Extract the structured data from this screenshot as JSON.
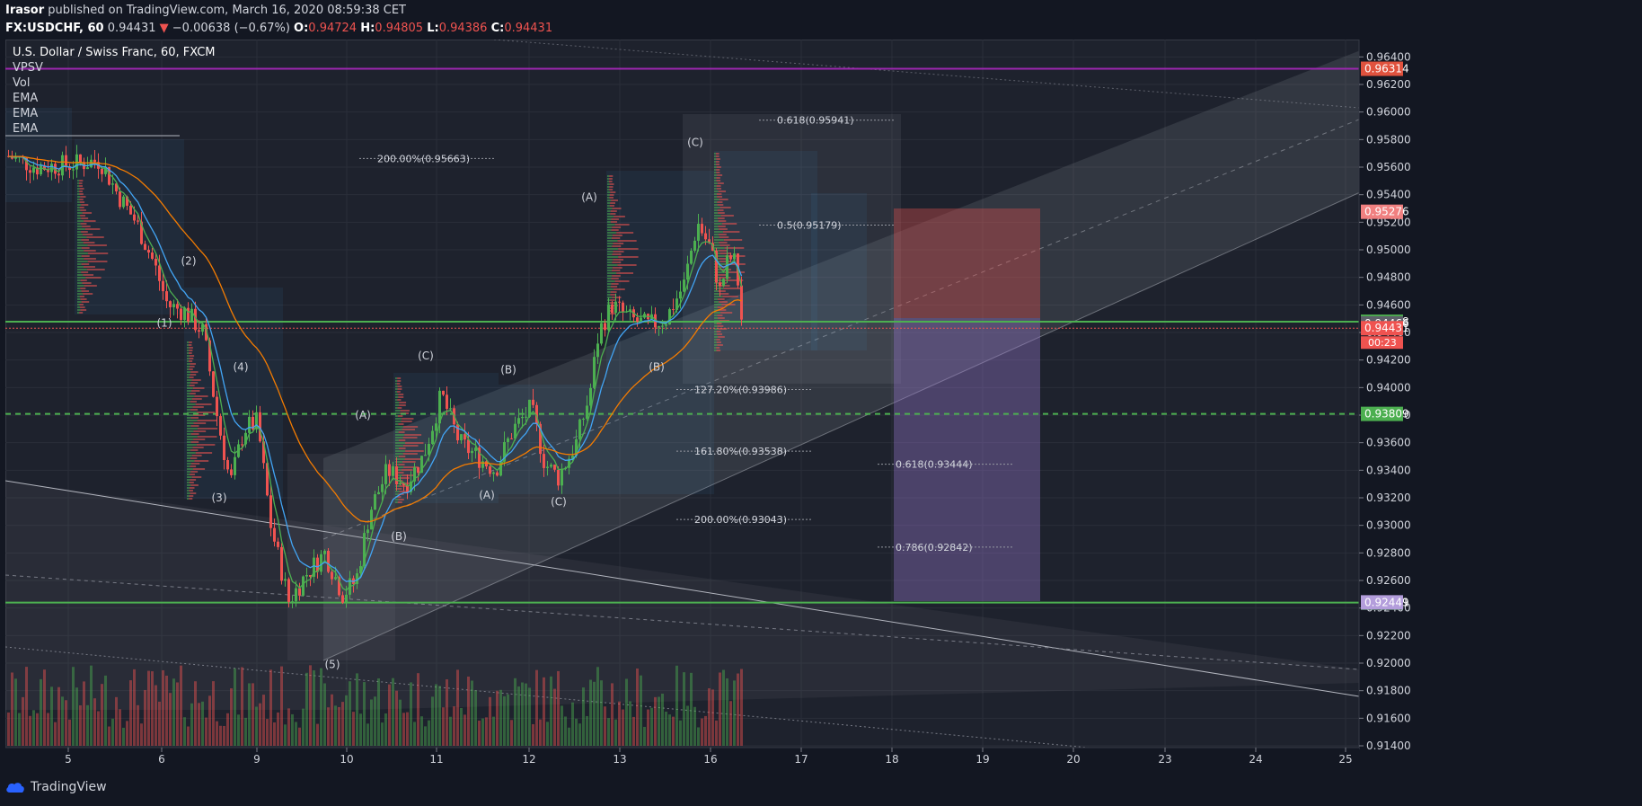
{
  "header": {
    "author": "Irasor",
    "published": "published on TradingView.com, March 16, 2020 08:59:38 CET",
    "symbol_line": "FX:USDCHF, 60",
    "last": "0.94431",
    "arrow": "▼",
    "change": "−0.00638 (−0.67%)",
    "o_label": "O:",
    "o_val": "0.94724",
    "h_label": "H:",
    "h_val": "0.94805",
    "l_label": "L:",
    "l_val": "0.94386",
    "c_label": "C:",
    "c_val": "0.94431"
  },
  "legend": {
    "title": "U.S. Dollar / Swiss Franc, 60, FXCM",
    "indicators": [
      "VPSV",
      "Vol",
      "EMA",
      "EMA",
      "EMA"
    ]
  },
  "colors": {
    "background": "#1e222d",
    "bull": "#4caf50",
    "bear": "#ef5350",
    "green_line": "#4caf50",
    "purple_line": "#9c27b0",
    "ema_fast": "#4caf50",
    "ema_mid": "#42a5f5",
    "ema_slow": "#f57c00"
  },
  "chart_data": {
    "type": "candlestick",
    "ylim": [
      0.914,
      0.965
    ],
    "y_ticks": [
      "0.96400",
      "0.96200",
      "0.96000",
      "0.95800",
      "0.95600",
      "0.95400",
      "0.95200",
      "0.95000",
      "0.94800",
      "0.94600",
      "0.94400",
      "0.94200",
      "0.94000",
      "0.93800",
      "0.93600",
      "0.93400",
      "0.93200",
      "0.93000",
      "0.92800",
      "0.92600",
      "0.92400",
      "0.92200",
      "0.92000",
      "0.91800",
      "0.91600",
      "0.91400"
    ],
    "x_ticks": [
      "5",
      "6",
      "9",
      "10",
      "11",
      "12",
      "13",
      "16",
      "17",
      "18",
      "19",
      "20",
      "23",
      "24",
      "25"
    ],
    "price_badges": [
      {
        "price": 0.96314,
        "label": "0.96314",
        "color": "#e0523e"
      },
      {
        "price": 0.95276,
        "label": "0.95276",
        "color": "#f08080"
      },
      {
        "price": 0.94478,
        "label": "0.94478",
        "color": "#4caf50"
      },
      {
        "price": 0.94466,
        "label": "0.94466",
        "color": "#5d606b"
      },
      {
        "price": 0.94431,
        "label": "0.94431",
        "color": "#ef5350"
      },
      {
        "price": 0.93809,
        "label": "0.93809",
        "color": "#4caf50"
      },
      {
        "price": 0.92439,
        "label": "0.92439",
        "color": "#4caf50"
      },
      {
        "price": 0.92441,
        "label": "0.92441",
        "color": "#b39ddb"
      }
    ],
    "countdown": "00:23",
    "horizontal_lines": [
      {
        "price": 0.96314,
        "color": "#9c27b0"
      },
      {
        "price": 0.94478,
        "color": "#4caf50"
      },
      {
        "price": 0.93809,
        "color": "#4caf50",
        "dashed": true
      },
      {
        "price": 0.92439,
        "color": "#4caf50"
      }
    ],
    "fib_labels": [
      {
        "text": "0.618(0.95941)",
        "x": 865,
        "price": 0.95941
      },
      {
        "text": "200.00%(0.95663)",
        "x": 420,
        "price": 0.95663
      },
      {
        "text": "0.5(0.95179)",
        "x": 865,
        "price": 0.95179
      },
      {
        "text": "127.20%(0.93986)",
        "x": 773,
        "price": 0.93986
      },
      {
        "text": "161.80%(0.93538)",
        "x": 773,
        "price": 0.93538
      },
      {
        "text": "0.618(0.93444)",
        "x": 997,
        "price": 0.93444
      },
      {
        "text": "200.00%(0.93043)",
        "x": 773,
        "price": 0.93043
      },
      {
        "text": "0.786(0.92842)",
        "x": 997,
        "price": 0.92842
      }
    ],
    "wave_labels": [
      {
        "text": "(1)",
        "price": 0.9447
      },
      {
        "text": "(2)",
        "price": 0.9492
      },
      {
        "text": "(3)",
        "price": 0.932
      },
      {
        "text": "(4)",
        "price": 0.9415
      },
      {
        "text": "(5)",
        "price": 0.9199
      },
      {
        "text": "(A)",
        "price": 0.938
      },
      {
        "text": "(B)",
        "price": 0.9292
      },
      {
        "text": "(C)",
        "price": 0.9423
      },
      {
        "text": "(A)",
        "price": 0.9322
      },
      {
        "text": "(B)",
        "price": 0.9413
      },
      {
        "text": "(C)",
        "price": 0.9317
      },
      {
        "text": "(A)",
        "price": 0.9538
      },
      {
        "text": "(B)",
        "price": 0.9415
      },
      {
        "text": "(C)",
        "price": 0.9578
      }
    ],
    "series": [
      {
        "name": "EMA"
      },
      {
        "name": "EMA"
      },
      {
        "name": "EMA"
      }
    ]
  },
  "footer": {
    "brand": "TradingView"
  }
}
